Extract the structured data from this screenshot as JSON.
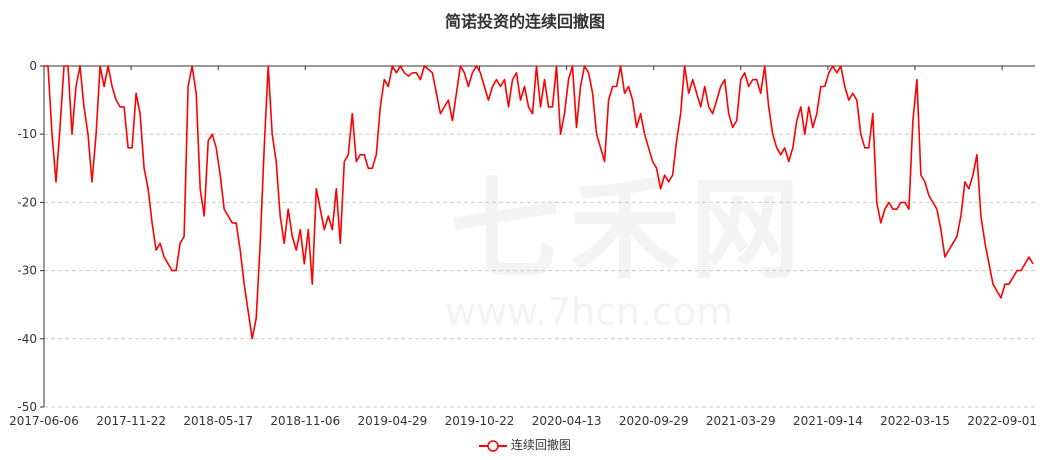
{
  "chart_data": {
    "type": "line",
    "title": "简诺投资的连续回撤图",
    "watermark": [
      "七禾网",
      "www.7hcn.com"
    ],
    "x_tick_labels": [
      "2017-06-06",
      "2017-11-22",
      "2018-05-17",
      "2018-11-06",
      "2019-04-29",
      "2019-10-22",
      "2020-04-13",
      "2020-09-29",
      "2021-03-29",
      "2021-09-14",
      "2022-03-15",
      "2022-09-01"
    ],
    "y_ticks": [
      0,
      -10,
      -20,
      -30,
      -40,
      -50
    ],
    "ylim": [
      -50,
      0
    ],
    "grid": "horizontal dashed",
    "legend_position": "bottom",
    "colors": {
      "line": "#ff0000",
      "axis": "#333333",
      "grid": "#cccccc"
    },
    "series": [
      {
        "name": "连续回撤图",
        "values": [
          0,
          0,
          -10,
          -17,
          -9,
          0,
          0,
          -10,
          -3,
          0,
          -6,
          -10,
          -17,
          -10,
          0,
          -3,
          0,
          -3,
          -5,
          -6,
          -6,
          -12,
          -12,
          -4,
          -7,
          -15,
          -18,
          -23,
          -27,
          -26,
          -28,
          -29,
          -30,
          -30,
          -26,
          -25,
          -3,
          0,
          -4,
          -18,
          -22,
          -11,
          -10,
          -12,
          -16,
          -21,
          -22,
          -23,
          -23,
          -27,
          -32,
          -36,
          -40,
          -37,
          -26,
          -12,
          0,
          -10,
          -14,
          -22,
          -26,
          -21,
          -25,
          -27,
          -24,
          -29,
          -24,
          -32,
          -18,
          -21,
          -24,
          -22,
          -24,
          -18,
          -26,
          -14,
          -13,
          -7,
          -14,
          -13,
          -13,
          -15,
          -15,
          -13,
          -6,
          -2,
          -3,
          0,
          -1,
          0,
          -1,
          -1.5,
          -1,
          -1,
          -2,
          0,
          -0.5,
          -1,
          -4,
          -7,
          -6,
          -5,
          -8,
          -4,
          0,
          -1,
          -3,
          -1,
          0,
          -1,
          -3,
          -5,
          -3,
          -2,
          -3,
          -2,
          -6,
          -2,
          -1,
          -5,
          -3,
          -6,
          -7,
          0,
          -6,
          -2,
          -6,
          -6,
          0,
          -10,
          -7,
          -2,
          0,
          -9,
          -3,
          0,
          -1,
          -4,
          -10,
          -12,
          -14,
          -5,
          -3,
          -3,
          0,
          -4,
          -3,
          -5,
          -9,
          -7,
          -10,
          -12,
          -14,
          -15,
          -18,
          -16,
          -17,
          -16,
          -11,
          -7,
          0,
          -4,
          -2,
          -4,
          -6,
          -3,
          -6,
          -7,
          -5,
          -3,
          -2,
          -7,
          -9,
          -8,
          -2,
          -1,
          -3,
          -2,
          -2,
          -4,
          0,
          -6,
          -10,
          -12,
          -13,
          -12,
          -14,
          -12,
          -8,
          -6,
          -10,
          -6,
          -9,
          -7,
          -3,
          -3,
          -1,
          0,
          -1,
          0,
          -3,
          -5,
          -4,
          -5,
          -10,
          -12,
          -12,
          -7,
          -20,
          -23,
          -21,
          -20,
          -21,
          -21,
          -20,
          -20,
          -21,
          -8,
          -2,
          -16,
          -17,
          -19,
          -20,
          -21,
          -24,
          -28,
          -27,
          -26,
          -25,
          -22,
          -17,
          -18,
          -16,
          -13,
          -22,
          -26,
          -29,
          -32,
          -33,
          -34,
          -32,
          -32,
          -31,
          -30,
          -30,
          -29,
          -28,
          -29
        ]
      }
    ]
  }
}
